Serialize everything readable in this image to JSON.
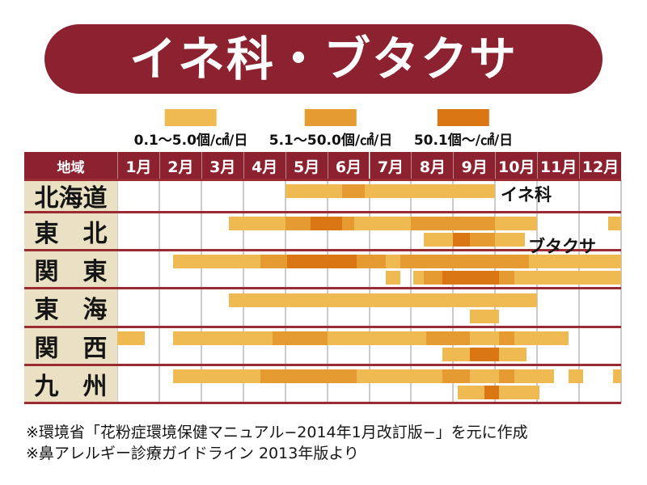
{
  "title": "イネ科・ブタクサ",
  "colors": {
    "banner": "#8C212F",
    "header_bg": "#8C212F",
    "row_separator": "#9B2B33",
    "region_cell_bg": "#EAE0C4",
    "low": "#F0BA52",
    "mid": "#E59B31",
    "high": "#DB7614"
  },
  "legend": {
    "items": [
      {
        "name": "low",
        "label": "0.1～5.0個/㎠/日",
        "color": "#F0BA52"
      },
      {
        "name": "mid",
        "label": "5.1～50.0個/㎠/日",
        "color": "#E59B31"
      },
      {
        "name": "high",
        "label": "50.1個～/㎠/日",
        "color": "#DB7614"
      }
    ]
  },
  "table": {
    "region_header": "地域",
    "months": [
      "1月",
      "2月",
      "3月",
      "4月",
      "5月",
      "6月",
      "7月",
      "8月",
      "9月",
      "10月",
      "11月",
      "12月"
    ]
  },
  "annotations": {
    "grass": "イネ科",
    "ragweed": "ブタクサ"
  },
  "footnotes": [
    "※環境省「花粉症環境保健マニュアル−2014年1月改訂版−」を元に作成",
    "※鼻アレルギー診療ガイドライン 2013年版より"
  ],
  "chart_data": {
    "type": "timeline",
    "title": "イネ科・ブタクサ 花粉カレンダー",
    "unit": "month units: 1.0 = Jan 1, 13.0 = Dec 31",
    "levels": {
      "low": "0.1～5.0個/㎠/日",
      "mid": "5.1～50.0個/㎠/日",
      "high": "50.1個～/㎠/日"
    },
    "series": [
      {
        "key": "grass",
        "label": "イネ科"
      },
      {
        "key": "ragweed",
        "label": "ブタクサ"
      }
    ],
    "regions": [
      {
        "name": "北海道",
        "grass": [
          {
            "start": 5.0,
            "end": 6.35,
            "level": "low"
          },
          {
            "start": 6.35,
            "end": 6.9,
            "level": "mid"
          },
          {
            "start": 6.9,
            "end": 10.0,
            "level": "low"
          }
        ],
        "ragweed": []
      },
      {
        "name": "東　北",
        "grass": [
          {
            "start": 3.65,
            "end": 5.0,
            "level": "low"
          },
          {
            "start": 5.0,
            "end": 5.6,
            "level": "mid"
          },
          {
            "start": 5.6,
            "end": 6.35,
            "level": "high"
          },
          {
            "start": 6.35,
            "end": 6.65,
            "level": "mid"
          },
          {
            "start": 6.65,
            "end": 8.0,
            "level": "low"
          },
          {
            "start": 8.0,
            "end": 10.0,
            "level": "mid"
          },
          {
            "start": 10.0,
            "end": 11.0,
            "level": "low"
          },
          {
            "start": 12.7,
            "end": 13.0,
            "level": "low"
          }
        ],
        "ragweed": [
          {
            "start": 8.3,
            "end": 9.0,
            "level": "low"
          },
          {
            "start": 9.0,
            "end": 9.4,
            "level": "high"
          },
          {
            "start": 9.4,
            "end": 10.0,
            "level": "mid"
          },
          {
            "start": 10.0,
            "end": 10.7,
            "level": "low"
          }
        ]
      },
      {
        "name": "関　東",
        "grass": [
          {
            "start": 2.33,
            "end": 4.4,
            "level": "low"
          },
          {
            "start": 4.4,
            "end": 5.05,
            "level": "mid"
          },
          {
            "start": 5.05,
            "end": 6.7,
            "level": "high"
          },
          {
            "start": 6.7,
            "end": 7.4,
            "level": "mid"
          },
          {
            "start": 7.4,
            "end": 7.75,
            "level": "low"
          },
          {
            "start": 7.75,
            "end": 10.8,
            "level": "mid"
          },
          {
            "start": 10.8,
            "end": 13.0,
            "level": "low"
          }
        ],
        "ragweed": [
          {
            "start": 7.4,
            "end": 7.75,
            "level": "low"
          },
          {
            "start": 8.05,
            "end": 8.3,
            "level": "low"
          },
          {
            "start": 8.3,
            "end": 8.75,
            "level": "mid"
          },
          {
            "start": 8.75,
            "end": 10.1,
            "level": "high"
          },
          {
            "start": 10.1,
            "end": 10.45,
            "level": "mid"
          },
          {
            "start": 10.45,
            "end": 13.0,
            "level": "low"
          }
        ]
      },
      {
        "name": "東　海",
        "grass": [
          {
            "start": 3.65,
            "end": 11.0,
            "level": "low"
          }
        ],
        "ragweed": [
          {
            "start": 9.4,
            "end": 10.1,
            "level": "low"
          }
        ]
      },
      {
        "name": "関　西",
        "grass": [
          {
            "start": 1.0,
            "end": 1.65,
            "level": "low"
          },
          {
            "start": 2.33,
            "end": 4.7,
            "level": "low"
          },
          {
            "start": 4.7,
            "end": 6.0,
            "level": "mid"
          },
          {
            "start": 6.0,
            "end": 8.35,
            "level": "low"
          },
          {
            "start": 8.35,
            "end": 9.4,
            "level": "mid"
          },
          {
            "start": 9.4,
            "end": 10.1,
            "level": "low"
          },
          {
            "start": 10.1,
            "end": 10.45,
            "level": "mid"
          },
          {
            "start": 10.45,
            "end": 11.75,
            "level": "low"
          }
        ],
        "ragweed": [
          {
            "start": 8.75,
            "end": 9.4,
            "level": "low"
          },
          {
            "start": 9.4,
            "end": 10.1,
            "level": "high"
          },
          {
            "start": 10.1,
            "end": 10.75,
            "level": "low"
          }
        ]
      },
      {
        "name": "九　州",
        "grass": [
          {
            "start": 2.33,
            "end": 4.4,
            "level": "low"
          },
          {
            "start": 4.4,
            "end": 6.7,
            "level": "mid"
          },
          {
            "start": 6.7,
            "end": 8.75,
            "level": "low"
          },
          {
            "start": 8.75,
            "end": 9.4,
            "level": "mid"
          },
          {
            "start": 9.4,
            "end": 10.1,
            "level": "low"
          },
          {
            "start": 10.1,
            "end": 10.45,
            "level": "mid"
          },
          {
            "start": 10.45,
            "end": 11.4,
            "level": "low"
          },
          {
            "start": 11.75,
            "end": 12.1,
            "level": "low"
          },
          {
            "start": 12.8,
            "end": 13.0,
            "level": "low"
          }
        ],
        "ragweed": [
          {
            "start": 9.1,
            "end": 9.75,
            "level": "low"
          },
          {
            "start": 9.75,
            "end": 10.1,
            "level": "high"
          },
          {
            "start": 10.1,
            "end": 11.05,
            "level": "low"
          }
        ]
      }
    ]
  }
}
